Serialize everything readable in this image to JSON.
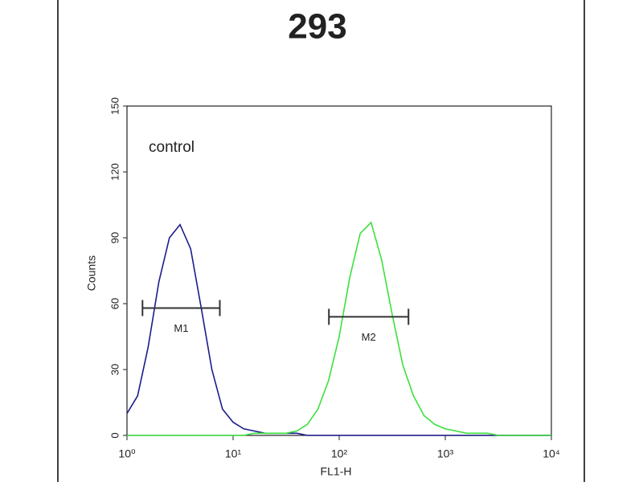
{
  "chart_data": {
    "type": "histogram-line",
    "title": "293",
    "xlabel": "FL1-H",
    "ylabel": "Counts",
    "annotation": "control",
    "xscale": "log",
    "xlim": [
      1,
      10000
    ],
    "xticks": [
      {
        "value": 1,
        "label": "10⁰"
      },
      {
        "value": 10,
        "label": "10¹"
      },
      {
        "value": 100,
        "label": "10²"
      },
      {
        "value": 1000,
        "label": "10³"
      },
      {
        "value": 10000,
        "label": "10⁴"
      }
    ],
    "ylim": [
      0,
      150
    ],
    "yticks": [
      0,
      30,
      60,
      90,
      120,
      150
    ],
    "x": [
      1,
      1.26,
      1.58,
      2,
      2.51,
      3.16,
      3.98,
      5.01,
      6.31,
      7.94,
      10,
      12.6,
      15.8,
      20,
      25.1,
      31.6,
      39.8,
      50.1,
      63.1,
      79.4,
      100,
      126,
      158,
      200,
      251,
      316,
      398,
      501,
      631,
      794,
      1000,
      1259,
      1585,
      1995,
      2512,
      3162,
      3981,
      5012,
      6310,
      7943,
      10000
    ],
    "series": [
      {
        "color": "#1c1c8c",
        "values": [
          10,
          18,
          40,
          70,
          90,
          96,
          85,
          58,
          30,
          12,
          6,
          3,
          2,
          1,
          1,
          1,
          1,
          0,
          0,
          0,
          0,
          0,
          0,
          0,
          0,
          0,
          0,
          0,
          0,
          0,
          0,
          0,
          0,
          0,
          0,
          0,
          0,
          0,
          0,
          0,
          0
        ]
      },
      {
        "color": "#3ee03e",
        "values": [
          0,
          0,
          0,
          0,
          0,
          0,
          0,
          0,
          0,
          0,
          0,
          0,
          1,
          1,
          1,
          1,
          2,
          5,
          12,
          25,
          45,
          72,
          92,
          97,
          80,
          55,
          32,
          18,
          9,
          5,
          3,
          2,
          1,
          1,
          1,
          0,
          0,
          0,
          0,
          0,
          0
        ]
      }
    ],
    "markers": [
      {
        "label": "M1",
        "x": [
          1.4,
          7.5
        ],
        "y": 58
      },
      {
        "label": "M2",
        "x": [
          80,
          450
        ],
        "y": 54
      }
    ]
  }
}
